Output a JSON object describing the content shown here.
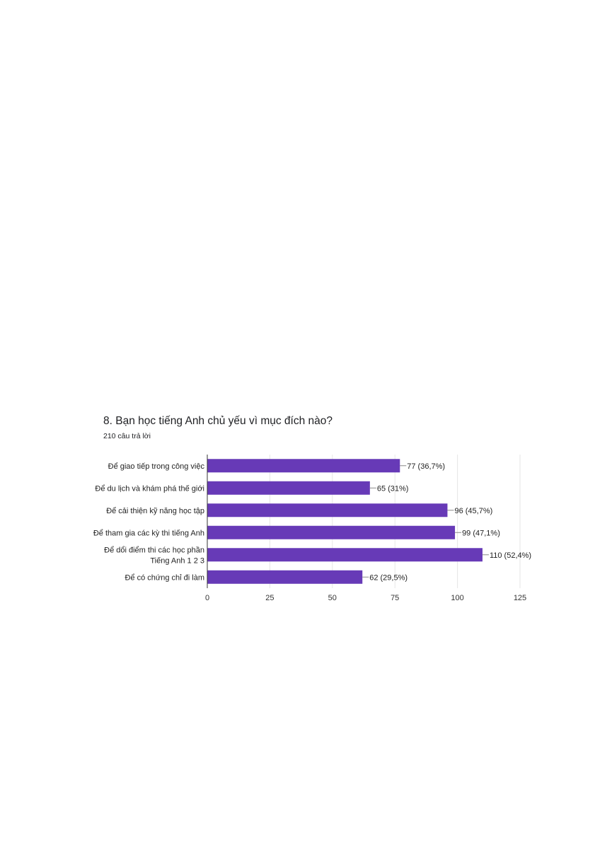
{
  "chart_data": {
    "type": "bar",
    "orientation": "horizontal",
    "title": "8. Bạn học tiếng Anh chủ yếu vì mục đích nào?",
    "subtitle": "210 câu trả lời",
    "categories": [
      [
        "Để giao tiếp trong công việc"
      ],
      [
        "Để du lịch và khám phá thế giới"
      ],
      [
        "Để cải thiện kỹ năng học tập"
      ],
      [
        "Để tham gia các kỳ thi tiếng Anh"
      ],
      [
        "Để dổi điểm thi các học phần",
        "Tiếng Anh 1 2 3"
      ],
      [
        "Để có chứng chỉ đi làm"
      ]
    ],
    "values": [
      77,
      65,
      96,
      99,
      110,
      62
    ],
    "data_labels": [
      "77 (36,7%)",
      "65 (31%)",
      "96 (45,7%)",
      "99 (47,1%)",
      "110 (52,4%)",
      "62 (29,5%)"
    ],
    "xticks": [
      "0",
      "25",
      "50",
      "75",
      "100",
      "125"
    ],
    "xlim": [
      0,
      125
    ],
    "grid": true,
    "bar_color": "#673ab7"
  }
}
